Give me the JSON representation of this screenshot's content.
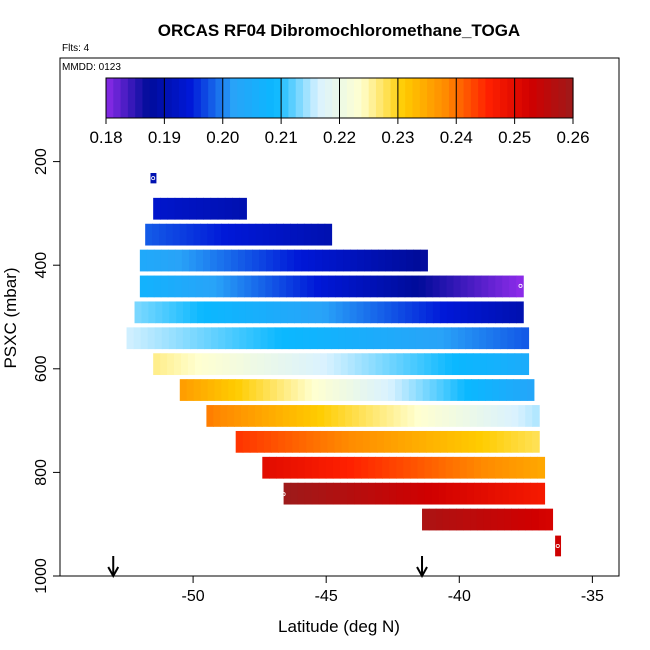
{
  "chart_data": {
    "type": "heatmap",
    "title": "ORCAS RF04 Dibromochloromethane_TOGA",
    "annotations": {
      "flights": "Flts: 4",
      "date": "MMDD: 0123"
    },
    "xlabel": "Latitude (deg N)",
    "ylabel": "PSXC (mbar)",
    "xlim": [
      -55,
      -34
    ],
    "ylim": [
      1000,
      0
    ],
    "x_ticks": [
      -50,
      -45,
      -40,
      -35
    ],
    "x_tick_labels": [
      "-50",
      "-45",
      "-40",
      "-35"
    ],
    "y_ticks": [
      200,
      400,
      600,
      800,
      1000
    ],
    "y_tick_labels": [
      "200",
      "400",
      "600",
      "800",
      "1000"
    ],
    "colorbar": {
      "range": [
        0.18,
        0.26
      ],
      "ticks": [
        0.18,
        0.19,
        0.2,
        0.21,
        0.22,
        0.23,
        0.24,
        0.25,
        0.26
      ],
      "tick_labels": [
        "0.18",
        "0.19",
        "0.20",
        "0.21",
        "0.22",
        "0.23",
        "0.24",
        "0.25",
        "0.26"
      ],
      "colors": [
        "#8b2be8",
        "#000c9a",
        "#0018d8",
        "#29a3f8",
        "#0ab8ff",
        "#d9f2ff",
        "#ffffd0",
        "#ffcc00",
        "#ff8a00",
        "#ff2000",
        "#d00000",
        "#9e1a1a"
      ]
    },
    "layers": [
      {
        "p_top": 222,
        "p_bot": 242,
        "lat_min": -51.6,
        "lat_max": -51.4,
        "v_start": 0.19,
        "v_end": 0.19
      },
      {
        "p_top": 270,
        "p_bot": 312,
        "lat_min": -51.5,
        "lat_max": -48.0,
        "v_start": 0.193,
        "v_end": 0.19
      },
      {
        "p_top": 320,
        "p_bot": 362,
        "lat_min": -51.8,
        "lat_max": -44.8,
        "v_start": 0.198,
        "v_end": 0.19
      },
      {
        "p_top": 370,
        "p_bot": 412,
        "lat_min": -52.0,
        "lat_max": -41.2,
        "v_start": 0.204,
        "v_end": 0.187
      },
      {
        "p_top": 420,
        "p_bot": 462,
        "lat_min": -52.0,
        "lat_max": -37.6,
        "v_start": 0.207,
        "v_end": 0.18
      },
      {
        "p_top": 470,
        "p_bot": 512,
        "lat_min": -52.2,
        "lat_max": -37.6,
        "v_start": 0.213,
        "v_end": 0.19
      },
      {
        "p_top": 520,
        "p_bot": 562,
        "lat_min": -52.5,
        "lat_max": -37.4,
        "v_start": 0.216,
        "v_end": 0.198
      },
      {
        "p_top": 570,
        "p_bot": 612,
        "lat_min": -51.5,
        "lat_max": -37.4,
        "v_start": 0.226,
        "v_end": 0.205
      },
      {
        "p_top": 620,
        "p_bot": 662,
        "lat_min": -50.5,
        "lat_max": -37.2,
        "v_start": 0.236,
        "v_end": 0.203
      },
      {
        "p_top": 670,
        "p_bot": 712,
        "lat_min": -49.5,
        "lat_max": -37.0,
        "v_start": 0.239,
        "v_end": 0.215
      },
      {
        "p_top": 720,
        "p_bot": 762,
        "lat_min": -48.4,
        "lat_max": -37.0,
        "v_start": 0.244,
        "v_end": 0.228
      },
      {
        "p_top": 770,
        "p_bot": 812,
        "lat_min": -47.4,
        "lat_max": -36.8,
        "v_start": 0.25,
        "v_end": 0.235
      },
      {
        "p_top": 820,
        "p_bot": 862,
        "lat_min": -46.6,
        "lat_max": -36.8,
        "v_start": 0.26,
        "v_end": 0.247
      },
      {
        "p_top": 870,
        "p_bot": 912,
        "lat_min": -41.4,
        "lat_max": -36.5,
        "v_start": 0.258,
        "v_end": 0.252
      },
      {
        "p_top": 922,
        "p_bot": 962,
        "lat_min": -36.4,
        "lat_max": -36.2,
        "v_start": 0.253,
        "v_end": 0.253
      }
    ],
    "sample_markers": [
      {
        "lat": -51.5,
        "p": 232
      },
      {
        "lat": -37.7,
        "p": 440
      },
      {
        "lat": -46.6,
        "p": 842
      },
      {
        "lat": -36.3,
        "p": 942
      }
    ],
    "arrows_lat": [
      -53.0,
      -41.4
    ]
  }
}
